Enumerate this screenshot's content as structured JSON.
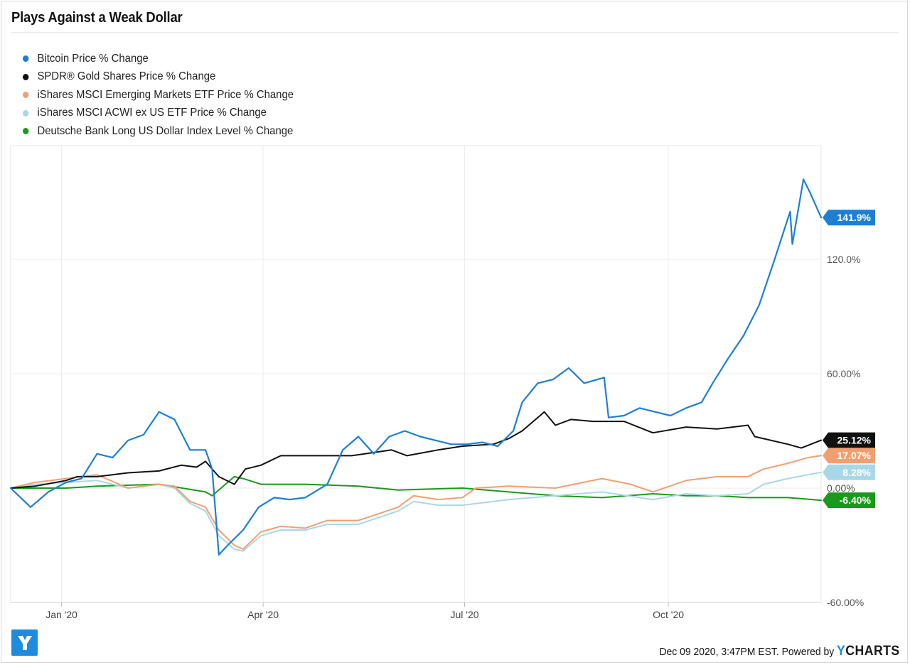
{
  "page": {
    "title": "Plays Against a Weak Dollar",
    "footer_text": "Dec 09 2020, 3:47PM EST.  Powered by",
    "brand_y": "Y",
    "brand_rest": "CHARTS",
    "logo_letter": "Y"
  },
  "colors": {
    "bitcoin": "#1c7fd6",
    "gold": "#111111",
    "em": "#f0a070",
    "acwi": "#a8d8e8",
    "usd": "#1a9a1a",
    "logo": "#1d8be0"
  },
  "legend": [
    {
      "label": "Bitcoin Price % Change",
      "color": "#1c7fd6"
    },
    {
      "label": "SPDR® Gold Shares Price % Change",
      "color": "#111111"
    },
    {
      "label": "iShares MSCI Emerging Markets ETF Price % Change",
      "color": "#f0a070"
    },
    {
      "label": "iShares MSCI ACWI ex US ETF Price % Change",
      "color": "#a8d8e8"
    },
    {
      "label": "Deutsche Bank Long US Dollar Index Level % Change",
      "color": "#1a9a1a"
    }
  ],
  "chart_data": {
    "type": "line",
    "title": "Plays Against a Weak Dollar",
    "x_range": [
      "2019-12-09",
      "2020-12-09"
    ],
    "x_ticks": [
      {
        "date": "2020-01-01",
        "label": "Jan '20"
      },
      {
        "date": "2020-04-01",
        "label": "Apr '20"
      },
      {
        "date": "2020-07-01",
        "label": "Jul '20"
      },
      {
        "date": "2020-10-01",
        "label": "Oct '20"
      }
    ],
    "y_ticks": [
      {
        "value": -60,
        "label": "-60.00%"
      },
      {
        "value": 0,
        "label": "0.00%"
      },
      {
        "value": 60,
        "label": "60.00%"
      },
      {
        "value": 120,
        "label": "120.0%"
      }
    ],
    "ylim": [
      -60,
      180
    ],
    "grid": true,
    "legend_position": "top-left",
    "series": [
      {
        "name": "Bitcoin Price % Change",
        "color": "#1c7fd6",
        "end_label": "141.9%",
        "points": [
          [
            "2019-12-09",
            0
          ],
          [
            "2019-12-18",
            -10
          ],
          [
            "2019-12-26",
            -2
          ],
          [
            "2020-01-03",
            3
          ],
          [
            "2020-01-10",
            5
          ],
          [
            "2020-01-17",
            18
          ],
          [
            "2020-01-24",
            16
          ],
          [
            "2020-01-31",
            25
          ],
          [
            "2020-02-07",
            28
          ],
          [
            "2020-02-14",
            40
          ],
          [
            "2020-02-21",
            36
          ],
          [
            "2020-02-28",
            20
          ],
          [
            "2020-03-06",
            20
          ],
          [
            "2020-03-09",
            10
          ],
          [
            "2020-03-12",
            -35
          ],
          [
            "2020-03-16",
            -30
          ],
          [
            "2020-03-23",
            -22
          ],
          [
            "2020-03-30",
            -10
          ],
          [
            "2020-04-06",
            -5
          ],
          [
            "2020-04-13",
            -6
          ],
          [
            "2020-04-20",
            -5
          ],
          [
            "2020-04-30",
            2
          ],
          [
            "2020-05-07",
            20
          ],
          [
            "2020-05-14",
            27
          ],
          [
            "2020-05-21",
            18
          ],
          [
            "2020-05-28",
            27
          ],
          [
            "2020-06-04",
            30
          ],
          [
            "2020-06-11",
            27
          ],
          [
            "2020-06-18",
            25
          ],
          [
            "2020-06-25",
            23
          ],
          [
            "2020-07-02",
            23
          ],
          [
            "2020-07-09",
            24
          ],
          [
            "2020-07-16",
            22
          ],
          [
            "2020-07-23",
            30
          ],
          [
            "2020-07-27",
            45
          ],
          [
            "2020-08-03",
            55
          ],
          [
            "2020-08-10",
            57
          ],
          [
            "2020-08-17",
            63
          ],
          [
            "2020-08-24",
            55
          ],
          [
            "2020-09-02",
            58
          ],
          [
            "2020-09-04",
            37
          ],
          [
            "2020-09-11",
            38
          ],
          [
            "2020-09-18",
            42
          ],
          [
            "2020-09-25",
            40
          ],
          [
            "2020-10-02",
            38
          ],
          [
            "2020-10-09",
            42
          ],
          [
            "2020-10-16",
            45
          ],
          [
            "2020-10-21",
            55
          ],
          [
            "2020-10-28",
            68
          ],
          [
            "2020-11-04",
            80
          ],
          [
            "2020-11-11",
            96
          ],
          [
            "2020-11-18",
            120
          ],
          [
            "2020-11-25",
            145
          ],
          [
            "2020-11-26",
            128
          ],
          [
            "2020-12-01",
            162
          ],
          [
            "2020-12-04",
            155
          ],
          [
            "2020-12-09",
            141.9
          ]
        ]
      },
      {
        "name": "SPDR® Gold Shares Price % Change",
        "color": "#111111",
        "end_label": "25.12%",
        "points": [
          [
            "2019-12-09",
            0
          ],
          [
            "2019-12-20",
            1
          ],
          [
            "2020-01-03",
            4
          ],
          [
            "2020-01-08",
            6
          ],
          [
            "2020-01-17",
            6
          ],
          [
            "2020-01-31",
            8
          ],
          [
            "2020-02-14",
            9
          ],
          [
            "2020-02-24",
            12
          ],
          [
            "2020-03-02",
            11
          ],
          [
            "2020-03-06",
            14
          ],
          [
            "2020-03-12",
            6
          ],
          [
            "2020-03-19",
            2
          ],
          [
            "2020-03-24",
            10
          ],
          [
            "2020-03-31",
            12
          ],
          [
            "2020-04-09",
            17
          ],
          [
            "2020-04-20",
            17
          ],
          [
            "2020-04-30",
            17
          ],
          [
            "2020-05-11",
            17
          ],
          [
            "2020-05-29",
            20
          ],
          [
            "2020-06-05",
            17
          ],
          [
            "2020-06-19",
            20
          ],
          [
            "2020-06-30",
            22
          ],
          [
            "2020-07-14",
            23
          ],
          [
            "2020-07-21",
            26
          ],
          [
            "2020-07-27",
            30
          ],
          [
            "2020-08-06",
            40
          ],
          [
            "2020-08-11",
            33
          ],
          [
            "2020-08-18",
            36
          ],
          [
            "2020-08-28",
            35
          ],
          [
            "2020-09-11",
            35
          ],
          [
            "2020-09-24",
            29
          ],
          [
            "2020-10-09",
            32
          ],
          [
            "2020-10-23",
            31
          ],
          [
            "2020-11-06",
            33
          ],
          [
            "2020-11-09",
            27
          ],
          [
            "2020-11-24",
            23
          ],
          [
            "2020-11-30",
            21
          ],
          [
            "2020-12-09",
            25.12
          ]
        ]
      },
      {
        "name": "iShares MSCI Emerging Markets ETF Price % Change",
        "color": "#f0a070",
        "end_label": "17.07%",
        "points": [
          [
            "2019-12-09",
            0
          ],
          [
            "2019-12-20",
            3
          ],
          [
            "2020-01-03",
            5
          ],
          [
            "2020-01-17",
            7
          ],
          [
            "2020-01-31",
            0
          ],
          [
            "2020-02-14",
            2
          ],
          [
            "2020-02-21",
            1
          ],
          [
            "2020-02-28",
            -7
          ],
          [
            "2020-03-06",
            -10
          ],
          [
            "2020-03-12",
            -22
          ],
          [
            "2020-03-19",
            -30
          ],
          [
            "2020-03-23",
            -32
          ],
          [
            "2020-03-31",
            -23
          ],
          [
            "2020-04-09",
            -20
          ],
          [
            "2020-04-20",
            -21
          ],
          [
            "2020-04-30",
            -17
          ],
          [
            "2020-05-14",
            -17
          ],
          [
            "2020-06-01",
            -10
          ],
          [
            "2020-06-08",
            -4
          ],
          [
            "2020-06-19",
            -6
          ],
          [
            "2020-06-30",
            -5
          ],
          [
            "2020-07-06",
            0
          ],
          [
            "2020-07-21",
            1
          ],
          [
            "2020-08-11",
            0
          ],
          [
            "2020-09-01",
            5
          ],
          [
            "2020-09-14",
            2
          ],
          [
            "2020-09-24",
            -2
          ],
          [
            "2020-10-09",
            4
          ],
          [
            "2020-10-23",
            6
          ],
          [
            "2020-11-06",
            6
          ],
          [
            "2020-11-13",
            10
          ],
          [
            "2020-11-24",
            13
          ],
          [
            "2020-12-03",
            16
          ],
          [
            "2020-12-09",
            17.07
          ]
        ]
      },
      {
        "name": "iShares MSCI ACWI ex US ETF Price % Change",
        "color": "#a8d8e8",
        "end_label": "8.28%",
        "points": [
          [
            "2019-12-09",
            0
          ],
          [
            "2019-12-20",
            2
          ],
          [
            "2020-01-03",
            3
          ],
          [
            "2020-01-17",
            4
          ],
          [
            "2020-01-31",
            0
          ],
          [
            "2020-02-14",
            2
          ],
          [
            "2020-02-21",
            0
          ],
          [
            "2020-02-28",
            -8
          ],
          [
            "2020-03-06",
            -12
          ],
          [
            "2020-03-12",
            -25
          ],
          [
            "2020-03-19",
            -32
          ],
          [
            "2020-03-23",
            -33
          ],
          [
            "2020-03-31",
            -25
          ],
          [
            "2020-04-09",
            -22
          ],
          [
            "2020-04-20",
            -22
          ],
          [
            "2020-04-30",
            -19
          ],
          [
            "2020-05-14",
            -19
          ],
          [
            "2020-06-01",
            -12
          ],
          [
            "2020-06-08",
            -7
          ],
          [
            "2020-06-19",
            -9
          ],
          [
            "2020-06-30",
            -9
          ],
          [
            "2020-07-21",
            -6
          ],
          [
            "2020-08-11",
            -4
          ],
          [
            "2020-09-01",
            -2
          ],
          [
            "2020-09-24",
            -6
          ],
          [
            "2020-10-09",
            -3
          ],
          [
            "2020-10-23",
            -4
          ],
          [
            "2020-11-06",
            -3
          ],
          [
            "2020-11-13",
            2
          ],
          [
            "2020-11-24",
            5
          ],
          [
            "2020-12-03",
            7
          ],
          [
            "2020-12-09",
            8.28
          ]
        ]
      },
      {
        "name": "Deutsche Bank Long US Dollar Index Level % Change",
        "color": "#1a9a1a",
        "end_label": "-6.40%",
        "points": [
          [
            "2019-12-09",
            0
          ],
          [
            "2020-01-03",
            0
          ],
          [
            "2020-01-17",
            1
          ],
          [
            "2020-02-14",
            2
          ],
          [
            "2020-03-06",
            -2
          ],
          [
            "2020-03-09",
            -4
          ],
          [
            "2020-03-19",
            6
          ],
          [
            "2020-03-23",
            5
          ],
          [
            "2020-03-31",
            2
          ],
          [
            "2020-04-20",
            2
          ],
          [
            "2020-05-14",
            1
          ],
          [
            "2020-06-01",
            -1
          ],
          [
            "2020-06-30",
            0
          ],
          [
            "2020-07-21",
            -2
          ],
          [
            "2020-08-11",
            -4
          ],
          [
            "2020-09-01",
            -5
          ],
          [
            "2020-09-24",
            -3
          ],
          [
            "2020-10-09",
            -4
          ],
          [
            "2020-10-23",
            -4
          ],
          [
            "2020-11-06",
            -5
          ],
          [
            "2020-11-24",
            -5
          ],
          [
            "2020-12-09",
            -6.4
          ]
        ]
      }
    ]
  }
}
